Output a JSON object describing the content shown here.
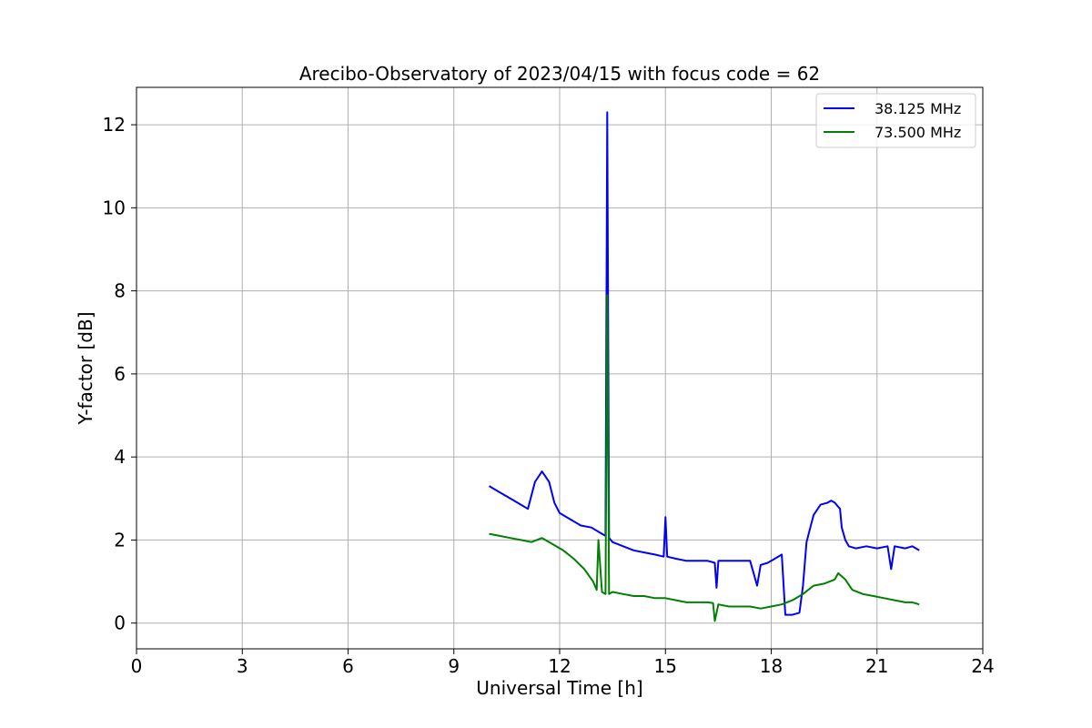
{
  "chart_data": {
    "type": "line",
    "title": "Arecibo-Observatory of 2023/04/15 with focus code = 62",
    "xlabel": "Universal Time [h]",
    "ylabel": "Y-factor [dB]",
    "xlim": [
      0,
      24
    ],
    "ylim": [
      -0.62,
      12.9
    ],
    "xticks": [
      0,
      3,
      6,
      9,
      12,
      15,
      18,
      21,
      24
    ],
    "yticks": [
      0,
      2,
      4,
      6,
      8,
      10,
      12
    ],
    "grid": true,
    "legend_position": "top-right",
    "series": [
      {
        "name": "38.125 MHz",
        "color": "#0000ff",
        "x": [
          10.0,
          10.3,
          10.6,
          10.9,
          11.1,
          11.3,
          11.5,
          11.7,
          11.85,
          12.0,
          12.3,
          12.6,
          12.9,
          13.2,
          13.3,
          13.35,
          13.4,
          13.5,
          13.8,
          14.1,
          14.4,
          14.7,
          14.95,
          15.0,
          15.05,
          15.3,
          15.6,
          15.9,
          16.2,
          16.4,
          16.45,
          16.5,
          16.8,
          17.1,
          17.4,
          17.6,
          17.7,
          17.9,
          18.1,
          18.3,
          18.4,
          18.6,
          18.8,
          18.9,
          19.0,
          19.2,
          19.4,
          19.6,
          19.7,
          19.8,
          19.95,
          20.0,
          20.1,
          20.2,
          20.4,
          20.7,
          21.0,
          21.3,
          21.4,
          21.5,
          21.8,
          22.0,
          22.2
        ],
        "y": [
          3.3,
          3.15,
          3.0,
          2.85,
          2.75,
          3.4,
          3.65,
          3.4,
          2.9,
          2.65,
          2.5,
          2.35,
          2.3,
          2.15,
          2.1,
          12.3,
          2.05,
          1.95,
          1.85,
          1.75,
          1.7,
          1.65,
          1.6,
          2.55,
          1.6,
          1.55,
          1.5,
          1.5,
          1.5,
          1.45,
          0.85,
          1.5,
          1.5,
          1.5,
          1.5,
          0.9,
          1.4,
          1.45,
          1.55,
          1.65,
          0.2,
          0.2,
          0.25,
          0.9,
          1.95,
          2.6,
          2.85,
          2.9,
          2.95,
          2.9,
          2.75,
          2.3,
          2.0,
          1.85,
          1.8,
          1.85,
          1.8,
          1.85,
          1.3,
          1.85,
          1.8,
          1.85,
          1.75
        ]
      },
      {
        "name": "73.500 MHz",
        "color": "#008000",
        "x": [
          10.0,
          10.3,
          10.6,
          10.9,
          11.2,
          11.5,
          11.8,
          12.1,
          12.4,
          12.7,
          12.95,
          13.05,
          13.1,
          13.2,
          13.3,
          13.35,
          13.4,
          13.5,
          13.8,
          14.1,
          14.4,
          14.7,
          15.0,
          15.3,
          15.6,
          15.9,
          16.2,
          16.35,
          16.4,
          16.5,
          16.8,
          17.1,
          17.4,
          17.7,
          18.0,
          18.3,
          18.6,
          18.9,
          19.2,
          19.5,
          19.8,
          19.9,
          20.1,
          20.3,
          20.6,
          20.9,
          21.2,
          21.5,
          21.8,
          22.0,
          22.2
        ],
        "y": [
          2.15,
          2.1,
          2.05,
          2.0,
          1.95,
          2.05,
          1.9,
          1.75,
          1.55,
          1.3,
          1.0,
          0.8,
          2.0,
          0.75,
          0.7,
          7.9,
          0.7,
          0.75,
          0.7,
          0.65,
          0.65,
          0.6,
          0.6,
          0.55,
          0.5,
          0.5,
          0.5,
          0.48,
          0.05,
          0.45,
          0.4,
          0.4,
          0.4,
          0.35,
          0.4,
          0.45,
          0.55,
          0.7,
          0.9,
          0.95,
          1.05,
          1.2,
          1.05,
          0.8,
          0.7,
          0.65,
          0.6,
          0.55,
          0.5,
          0.5,
          0.45
        ]
      }
    ]
  }
}
